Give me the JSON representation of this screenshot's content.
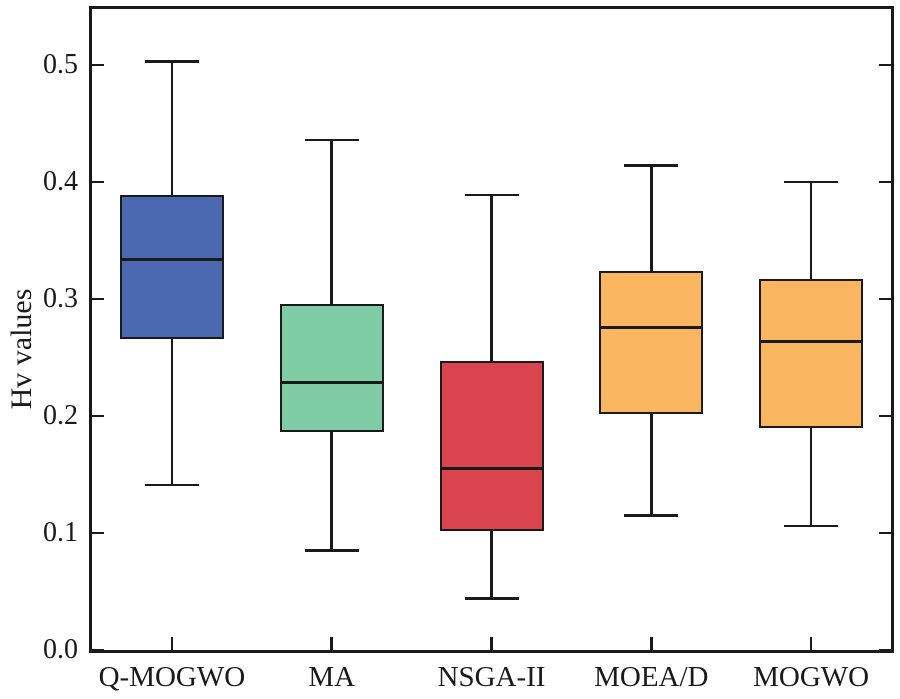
{
  "chart_data": {
    "type": "boxplot",
    "title": "",
    "xlabel": "",
    "ylabel": "Hv values",
    "ylim": [
      0.0,
      0.548
    ],
    "yticks": [
      0.0,
      0.1,
      0.2,
      0.3,
      0.4,
      0.5
    ],
    "ytick_labels": [
      "0.0",
      "0.1",
      "0.2",
      "0.3",
      "0.4",
      "0.5"
    ],
    "grid": false,
    "legend": "none",
    "axis_line_color": "#1a1a1a",
    "categories": [
      "Q-MOGWO",
      "MA",
      "NSGA-II",
      "MOEA/D",
      "MOGWO"
    ],
    "series": [
      {
        "name": "Q-MOGWO",
        "color": "#4a69b1",
        "whisker_low": 0.141,
        "q1": 0.266,
        "median": 0.334,
        "q3": 0.389,
        "whisker_high": 0.503
      },
      {
        "name": "MA",
        "color": "#7fcba3",
        "whisker_low": 0.085,
        "q1": 0.186,
        "median": 0.229,
        "q3": 0.296,
        "whisker_high": 0.436
      },
      {
        "name": "NSGA-II",
        "color": "#d9444e",
        "whisker_low": 0.044,
        "q1": 0.102,
        "median": 0.155,
        "q3": 0.247,
        "whisker_high": 0.389
      },
      {
        "name": "MOEA/D",
        "color": "#fab560",
        "whisker_low": 0.115,
        "q1": 0.202,
        "median": 0.276,
        "q3": 0.324,
        "whisker_high": 0.414
      },
      {
        "name": "MOGWO",
        "color": "#fab560",
        "whisker_low": 0.106,
        "q1": 0.19,
        "median": 0.264,
        "q3": 0.317,
        "whisker_high": 0.4
      }
    ]
  }
}
